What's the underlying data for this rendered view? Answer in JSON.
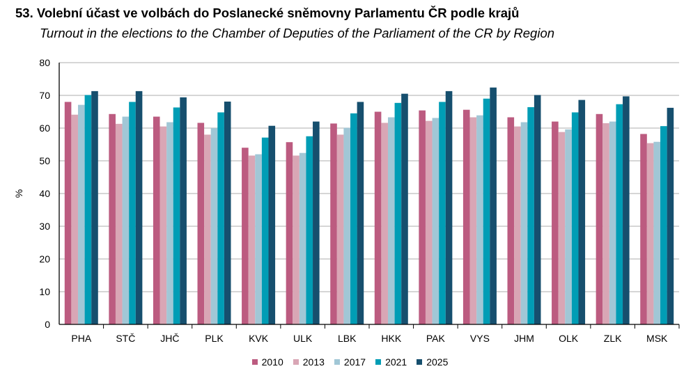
{
  "title": "53. Volební účast ve volbách do Poslanecké sněmovny Parlamentu ČR podle krajů",
  "subtitle": "Turnout in the elections to the Chamber of Deputies of the Parliament of the CR by Region",
  "chart_data": {
    "type": "bar",
    "ylabel": "%",
    "xlabel": "",
    "ylim": [
      0,
      80
    ],
    "yticks": [
      0,
      10,
      20,
      30,
      40,
      50,
      60,
      70,
      80
    ],
    "grid": true,
    "legend_position": "bottom",
    "categories": [
      "PHA",
      "STČ",
      "JHČ",
      "PLK",
      "KVK",
      "ULK",
      "LBK",
      "HKK",
      "PAK",
      "VYS",
      "JHM",
      "OLK",
      "ZLK",
      "MSK"
    ],
    "series": [
      {
        "name": "2010",
        "color": "#BC5B80",
        "values": [
          68.0,
          64.3,
          63.5,
          61.6,
          54.0,
          55.7,
          61.4,
          65.0,
          65.4,
          65.6,
          63.3,
          62.0,
          64.3,
          58.2
        ]
      },
      {
        "name": "2013",
        "color": "#D9A6B5",
        "values": [
          64.1,
          61.3,
          60.5,
          58.0,
          51.6,
          51.6,
          58.0,
          61.6,
          62.2,
          63.3,
          60.5,
          58.8,
          61.5,
          55.4
        ]
      },
      {
        "name": "2017",
        "color": "#A1C7D6",
        "values": [
          67.1,
          63.5,
          61.8,
          60.0,
          52.0,
          52.4,
          60.1,
          63.3,
          63.1,
          63.9,
          61.8,
          59.6,
          62.0,
          55.8
        ]
      },
      {
        "name": "2021",
        "color": "#009DB5",
        "values": [
          70.1,
          68.0,
          66.3,
          64.8,
          57.1,
          57.5,
          64.5,
          67.7,
          68.0,
          69.0,
          66.4,
          64.8,
          67.3,
          60.6
        ]
      },
      {
        "name": "2025",
        "color": "#164F6E",
        "values": [
          71.3,
          71.3,
          69.4,
          68.1,
          60.7,
          62.0,
          68.0,
          70.5,
          71.3,
          72.4,
          70.1,
          68.6,
          69.7,
          66.2
        ]
      }
    ]
  }
}
